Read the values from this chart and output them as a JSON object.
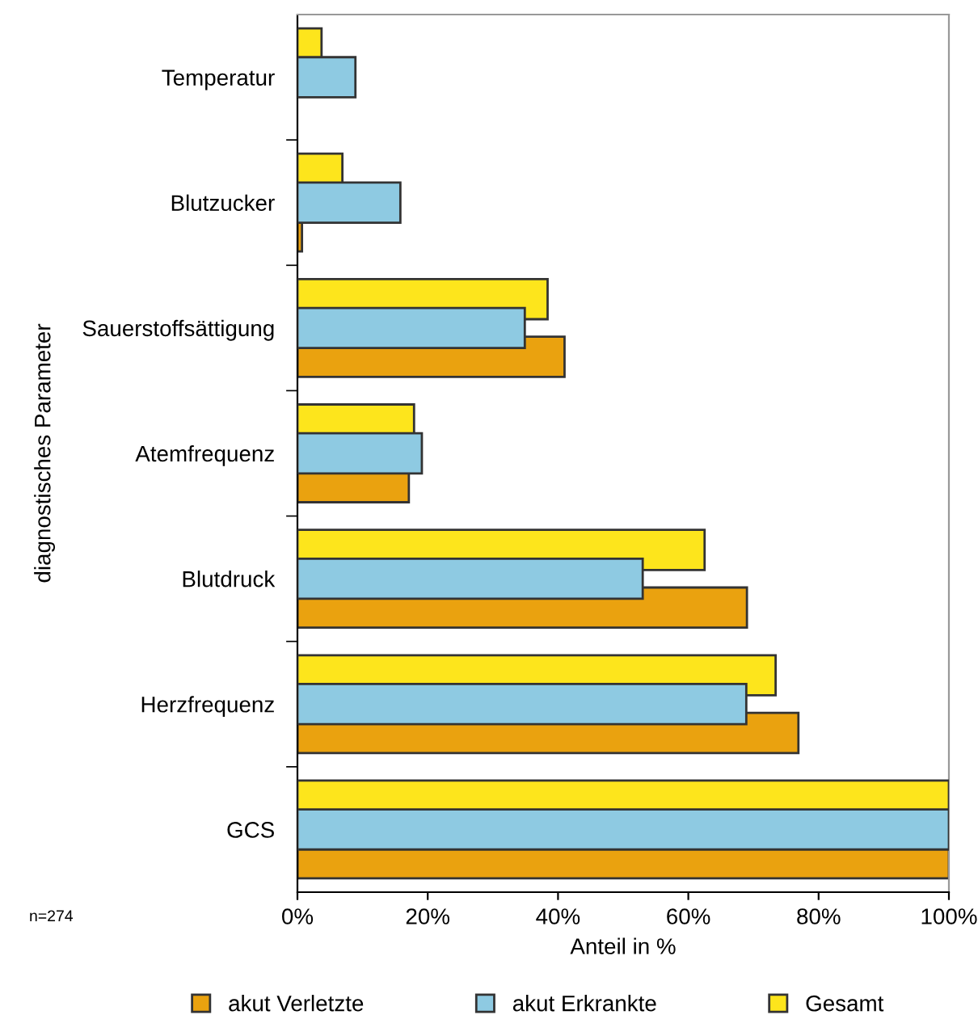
{
  "chart_data": {
    "type": "bar",
    "orientation": "horizontal",
    "ylabel": "diagnostisches Parameter",
    "xlabel": "Anteil in %",
    "categories": [
      "Temperatur",
      "Blutzucker",
      "Sauerstoffsättigung",
      "Atemfrequenz",
      "Blutdruck",
      "Herzfrequenz",
      "GCS"
    ],
    "series": [
      {
        "name": "akut Verletzte",
        "color": "#eaa20f",
        "values": [
          null,
          0.7,
          41,
          17.1,
          69,
          76.9,
          100
        ]
      },
      {
        "name": "akut Erkrankte",
        "color": "#8ecae2",
        "values": [
          8.9,
          15.8,
          34.9,
          19.1,
          53,
          68.9,
          100
        ]
      },
      {
        "name": "Gesamt",
        "color": "#fde51c",
        "values": [
          3.7,
          6.9,
          38.4,
          17.9,
          62.5,
          73.4,
          100
        ]
      }
    ],
    "xlim": [
      0,
      100
    ],
    "xticks": [
      {
        "value": 0,
        "label": "0%"
      },
      {
        "value": 20,
        "label": "20%"
      },
      {
        "value": 40,
        "label": "40%"
      },
      {
        "value": 60,
        "label": "60%"
      },
      {
        "value": 80,
        "label": "80%"
      },
      {
        "value": 100,
        "label": "100%"
      }
    ],
    "grid": false,
    "legend": "bottom",
    "annotations": [
      "n=274"
    ]
  }
}
